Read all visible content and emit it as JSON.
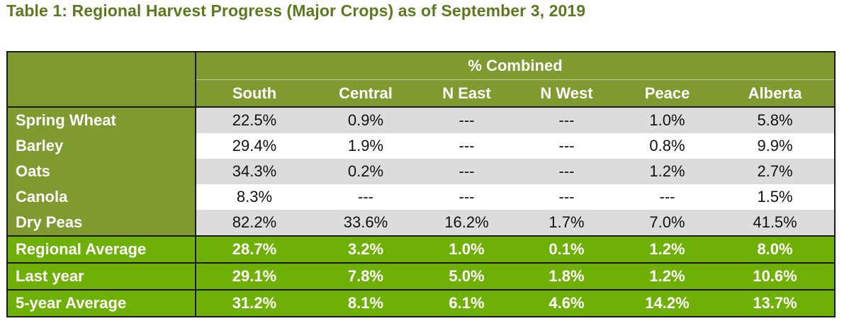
{
  "title": "Table 1: Regional Harvest Progress (Major Crops) as of September 3, 2019",
  "table": {
    "group_header": "% Combined",
    "columns": [
      "South",
      "Central",
      "N East",
      "N West",
      "Peace",
      "Alberta"
    ],
    "crop_rows": [
      {
        "label": "Spring Wheat",
        "values": [
          "22.5%",
          "0.9%",
          "---",
          "---",
          "1.0%",
          "5.8%"
        ]
      },
      {
        "label": "Barley",
        "values": [
          "29.4%",
          "1.9%",
          "---",
          "---",
          "0.8%",
          "9.9%"
        ]
      },
      {
        "label": "Oats",
        "values": [
          "34.3%",
          "0.2%",
          "---",
          "---",
          "1.2%",
          "2.7%"
        ]
      },
      {
        "label": "Canola",
        "values": [
          "8.3%",
          "---",
          "---",
          "---",
          "---",
          "1.5%"
        ]
      },
      {
        "label": "Dry Peas",
        "values": [
          "82.2%",
          "33.6%",
          "16.2%",
          "1.7%",
          "7.0%",
          "41.5%"
        ]
      }
    ],
    "summary_rows": [
      {
        "label": "Regional Average",
        "values": [
          "28.7%",
          "3.2%",
          "1.0%",
          "0.1%",
          "1.2%",
          "8.0%"
        ]
      },
      {
        "label": "Last year",
        "values": [
          "29.1%",
          "7.8%",
          "5.0%",
          "1.8%",
          "1.2%",
          "10.6%"
        ]
      },
      {
        "label": "5-year Average",
        "values": [
          "31.2%",
          "8.1%",
          "6.1%",
          "4.6%",
          "14.2%",
          "13.7%"
        ]
      }
    ]
  }
}
